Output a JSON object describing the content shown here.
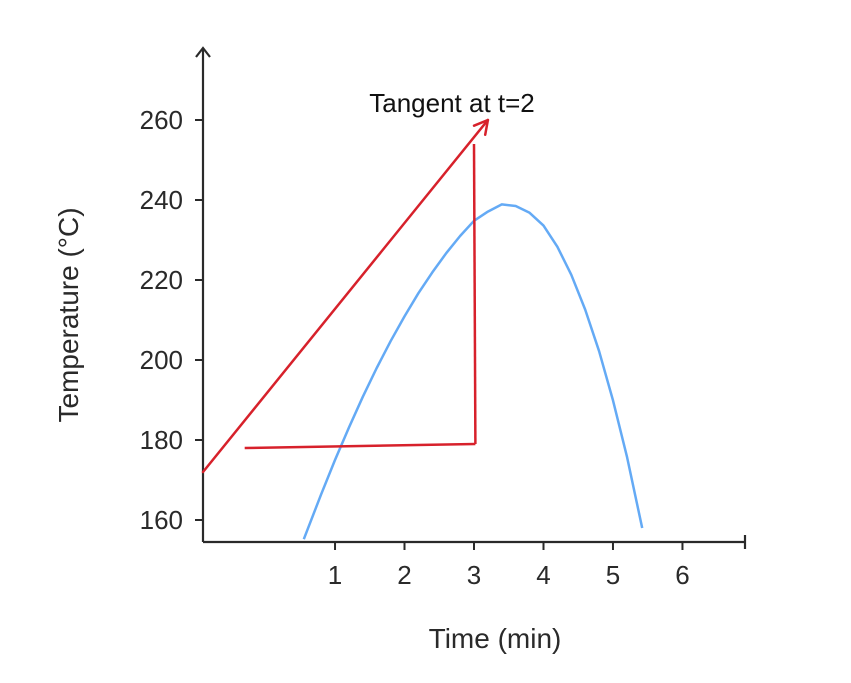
{
  "chart_data": {
    "type": "line",
    "title": "",
    "xlabel": "Time (min)",
    "ylabel": "Temperature (°C)",
    "xlim": [
      -0.9,
      6.9
    ],
    "ylim": [
      154.5,
      278
    ],
    "x_ticks": [
      "1",
      "2",
      "3",
      "4",
      "5",
      "6"
    ],
    "y_ticks": [
      "160",
      "180",
      "200",
      "220",
      "240",
      "260"
    ],
    "grid": false,
    "series": [
      {
        "color": "#64aaf5",
        "x": [
          0.55,
          0.8,
          1.0,
          1.2,
          1.4,
          1.6,
          1.8,
          2.0,
          2.2,
          2.4,
          2.6,
          2.8,
          3.0,
          3.2,
          3.4,
          3.6,
          3.8,
          4.0,
          4.2,
          4.4,
          4.6,
          4.8,
          5.0,
          5.2,
          5.42
        ],
        "y": [
          155.2,
          166.4,
          175.0,
          183.1,
          190.8,
          198.0,
          204.7,
          210.9,
          216.7,
          221.9,
          226.7,
          231.0,
          234.8,
          237.1,
          238.9,
          238.5,
          236.8,
          233.6,
          228.3,
          221.3,
          212.6,
          202.2,
          189.9,
          175.9,
          158.0
        ]
      }
    ],
    "annotations": [
      {
        "text": "Tangent at t=2",
        "color": "#d7212b",
        "tangent_line": {
          "x": [
            -0.9,
            3.2
          ],
          "y": [
            172,
            260
          ]
        },
        "rise_line": {
          "x": [
            3.02,
            3.0
          ],
          "y": [
            179,
            254
          ]
        },
        "run_line": {
          "x": [
            -0.3,
            3.02
          ],
          "y": [
            178,
            179
          ]
        }
      }
    ]
  }
}
